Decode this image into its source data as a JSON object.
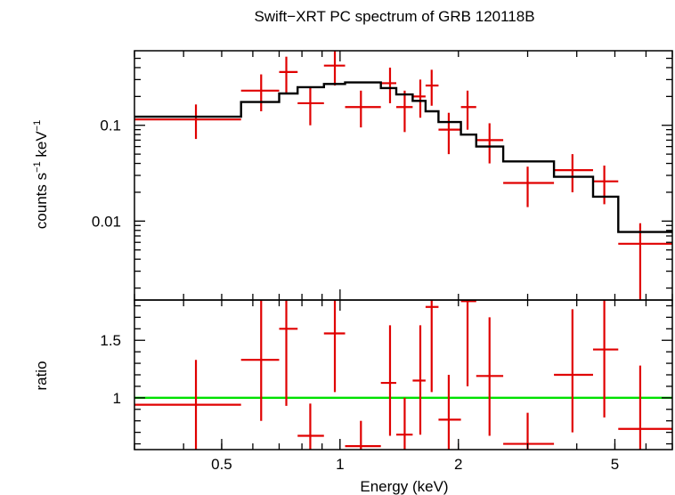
{
  "title": "Swift−XRT PC spectrum of GRB 120118B",
  "colors": {
    "data": "#e00000",
    "model": "#000000",
    "unity": "#00e000",
    "frame": "#000000"
  },
  "chart_data": [
    {
      "type": "scatter",
      "panel": "spectrum",
      "ylabel_main": "counts s",
      "ylabel_exp1": "−1",
      "ylabel_mid": " keV",
      "ylabel_exp2": "−1",
      "xscale": "log",
      "yscale": "log",
      "xlim": [
        0.3,
        7.0
      ],
      "ylim": [
        0.0015,
        0.6
      ],
      "yticks": [
        {
          "value": 0.1,
          "label": "0.1"
        },
        {
          "value": 0.01,
          "label": "0.01"
        }
      ],
      "series": [
        {
          "kind": "data",
          "points": [
            {
              "x": 0.43,
              "xlo": 0.3,
              "xhi": 0.56,
              "y": 0.115,
              "ylo": 0.072,
              "yhi": 0.165
            },
            {
              "x": 0.63,
              "xlo": 0.56,
              "xhi": 0.7,
              "y": 0.23,
              "ylo": 0.14,
              "yhi": 0.34
            },
            {
              "x": 0.73,
              "xlo": 0.7,
              "xhi": 0.78,
              "y": 0.36,
              "ylo": 0.22,
              "yhi": 0.52
            },
            {
              "x": 0.84,
              "xlo": 0.78,
              "xhi": 0.91,
              "y": 0.17,
              "ylo": 0.1,
              "yhi": 0.25
            },
            {
              "x": 0.97,
              "xlo": 0.91,
              "xhi": 1.03,
              "y": 0.42,
              "ylo": 0.26,
              "yhi": 0.62
            },
            {
              "x": 1.13,
              "xlo": 1.03,
              "xhi": 1.27,
              "y": 0.155,
              "ylo": 0.095,
              "yhi": 0.23
            },
            {
              "x": 1.34,
              "xlo": 1.27,
              "xhi": 1.39,
              "y": 0.275,
              "ylo": 0.17,
              "yhi": 0.4
            },
            {
              "x": 1.46,
              "xlo": 1.39,
              "xhi": 1.53,
              "y": 0.155,
              "ylo": 0.085,
              "yhi": 0.23
            },
            {
              "x": 1.6,
              "xlo": 1.53,
              "xhi": 1.65,
              "y": 0.2,
              "ylo": 0.12,
              "yhi": 0.3
            },
            {
              "x": 1.71,
              "xlo": 1.65,
              "xhi": 1.78,
              "y": 0.26,
              "ylo": 0.16,
              "yhi": 0.38
            },
            {
              "x": 1.89,
              "xlo": 1.78,
              "xhi": 2.03,
              "y": 0.09,
              "ylo": 0.05,
              "yhi": 0.135
            },
            {
              "x": 2.11,
              "xlo": 2.03,
              "xhi": 2.22,
              "y": 0.155,
              "ylo": 0.09,
              "yhi": 0.23
            },
            {
              "x": 2.4,
              "xlo": 2.22,
              "xhi": 2.6,
              "y": 0.07,
              "ylo": 0.04,
              "yhi": 0.105
            },
            {
              "x": 3.0,
              "xlo": 2.6,
              "xhi": 3.5,
              "y": 0.025,
              "ylo": 0.014,
              "yhi": 0.037
            },
            {
              "x": 3.9,
              "xlo": 3.5,
              "xhi": 4.4,
              "y": 0.034,
              "ylo": 0.02,
              "yhi": 0.05
            },
            {
              "x": 4.7,
              "xlo": 4.4,
              "xhi": 5.1,
              "y": 0.026,
              "ylo": 0.015,
              "yhi": 0.038
            },
            {
              "x": 5.8,
              "xlo": 5.1,
              "xhi": 7.0,
              "y": 0.0058,
              "ylo": 0.0015,
              "yhi": 0.0095
            }
          ]
        },
        {
          "kind": "model-step",
          "steps": [
            {
              "x0": 0.3,
              "x1": 0.56,
              "y": 0.123
            },
            {
              "x0": 0.56,
              "x1": 0.7,
              "y": 0.175
            },
            {
              "x0": 0.7,
              "x1": 0.78,
              "y": 0.215
            },
            {
              "x0": 0.78,
              "x1": 0.91,
              "y": 0.25
            },
            {
              "x0": 0.91,
              "x1": 1.03,
              "y": 0.27
            },
            {
              "x0": 1.03,
              "x1": 1.27,
              "y": 0.28
            },
            {
              "x0": 1.27,
              "x1": 1.39,
              "y": 0.245
            },
            {
              "x0": 1.39,
              "x1": 1.53,
              "y": 0.21
            },
            {
              "x0": 1.53,
              "x1": 1.65,
              "y": 0.18
            },
            {
              "x0": 1.65,
              "x1": 1.78,
              "y": 0.14
            },
            {
              "x0": 1.78,
              "x1": 2.03,
              "y": 0.108
            },
            {
              "x0": 2.03,
              "x1": 2.22,
              "y": 0.08
            },
            {
              "x0": 2.22,
              "x1": 2.6,
              "y": 0.06
            },
            {
              "x0": 2.6,
              "x1": 3.5,
              "y": 0.042
            },
            {
              "x0": 3.5,
              "x1": 4.4,
              "y": 0.029
            },
            {
              "x0": 4.4,
              "x1": 5.1,
              "y": 0.018
            },
            {
              "x0": 5.1,
              "x1": 7.0,
              "y": 0.0077
            }
          ]
        }
      ]
    },
    {
      "type": "scatter",
      "panel": "ratio",
      "ylabel": "ratio",
      "xlabel": "Energy (keV)",
      "xscale": "log",
      "xlim": [
        0.3,
        7.0
      ],
      "ylim": [
        0.55,
        1.85
      ],
      "yticks": [
        {
          "value": 1.5,
          "label": "1.5"
        },
        {
          "value": 1,
          "label": "1"
        }
      ],
      "xticks": [
        {
          "value": 0.5,
          "label": "0.5"
        },
        {
          "value": 1,
          "label": "1"
        },
        {
          "value": 2,
          "label": "2"
        },
        {
          "value": 5,
          "label": "5"
        }
      ],
      "reference_line": 1.0,
      "series": [
        {
          "kind": "data",
          "points": [
            {
              "x": 0.43,
              "xlo": 0.3,
              "xhi": 0.56,
              "y": 0.94,
              "ylo": 0.55,
              "yhi": 1.33
            },
            {
              "x": 0.63,
              "xlo": 0.56,
              "xhi": 0.7,
              "y": 1.33,
              "ylo": 0.8,
              "yhi": 1.85
            },
            {
              "x": 0.73,
              "xlo": 0.7,
              "xhi": 0.78,
              "y": 1.6,
              "ylo": 0.93,
              "yhi": 1.85
            },
            {
              "x": 0.84,
              "xlo": 0.78,
              "xhi": 0.91,
              "y": 0.67,
              "ylo": 0.55,
              "yhi": 0.95
            },
            {
              "x": 0.97,
              "xlo": 0.91,
              "xhi": 1.03,
              "y": 1.56,
              "ylo": 1.05,
              "yhi": 1.85
            },
            {
              "x": 1.13,
              "xlo": 1.03,
              "xhi": 1.27,
              "y": 0.58,
              "ylo": 0.55,
              "yhi": 0.8
            },
            {
              "x": 1.34,
              "xlo": 1.27,
              "xhi": 1.39,
              "y": 1.13,
              "ylo": 0.67,
              "yhi": 1.63
            },
            {
              "x": 1.46,
              "xlo": 1.39,
              "xhi": 1.53,
              "y": 0.68,
              "ylo": 0.55,
              "yhi": 1.0
            },
            {
              "x": 1.6,
              "xlo": 1.53,
              "xhi": 1.65,
              "y": 1.15,
              "ylo": 0.68,
              "yhi": 1.63
            },
            {
              "x": 1.71,
              "xlo": 1.65,
              "xhi": 1.78,
              "y": 1.79,
              "ylo": 1.05,
              "yhi": 1.85
            },
            {
              "x": 1.89,
              "xlo": 1.78,
              "xhi": 2.03,
              "y": 0.81,
              "ylo": 0.55,
              "yhi": 1.2
            },
            {
              "x": 2.11,
              "xlo": 2.03,
              "xhi": 2.22,
              "y": 1.84,
              "ylo": 1.1,
              "yhi": 1.85
            },
            {
              "x": 2.4,
              "xlo": 2.22,
              "xhi": 2.6,
              "y": 1.19,
              "ylo": 0.67,
              "yhi": 1.7
            },
            {
              "x": 3.0,
              "xlo": 2.6,
              "xhi": 3.5,
              "y": 0.6,
              "ylo": 0.55,
              "yhi": 0.87
            },
            {
              "x": 3.9,
              "xlo": 3.5,
              "xhi": 4.4,
              "y": 1.2,
              "ylo": 0.7,
              "yhi": 1.77
            },
            {
              "x": 4.7,
              "xlo": 4.4,
              "xhi": 5.1,
              "y": 1.42,
              "ylo": 0.83,
              "yhi": 1.85
            },
            {
              "x": 5.8,
              "xlo": 5.1,
              "xhi": 7.0,
              "y": 0.73,
              "ylo": 0.55,
              "yhi": 1.28
            }
          ]
        }
      ]
    }
  ]
}
